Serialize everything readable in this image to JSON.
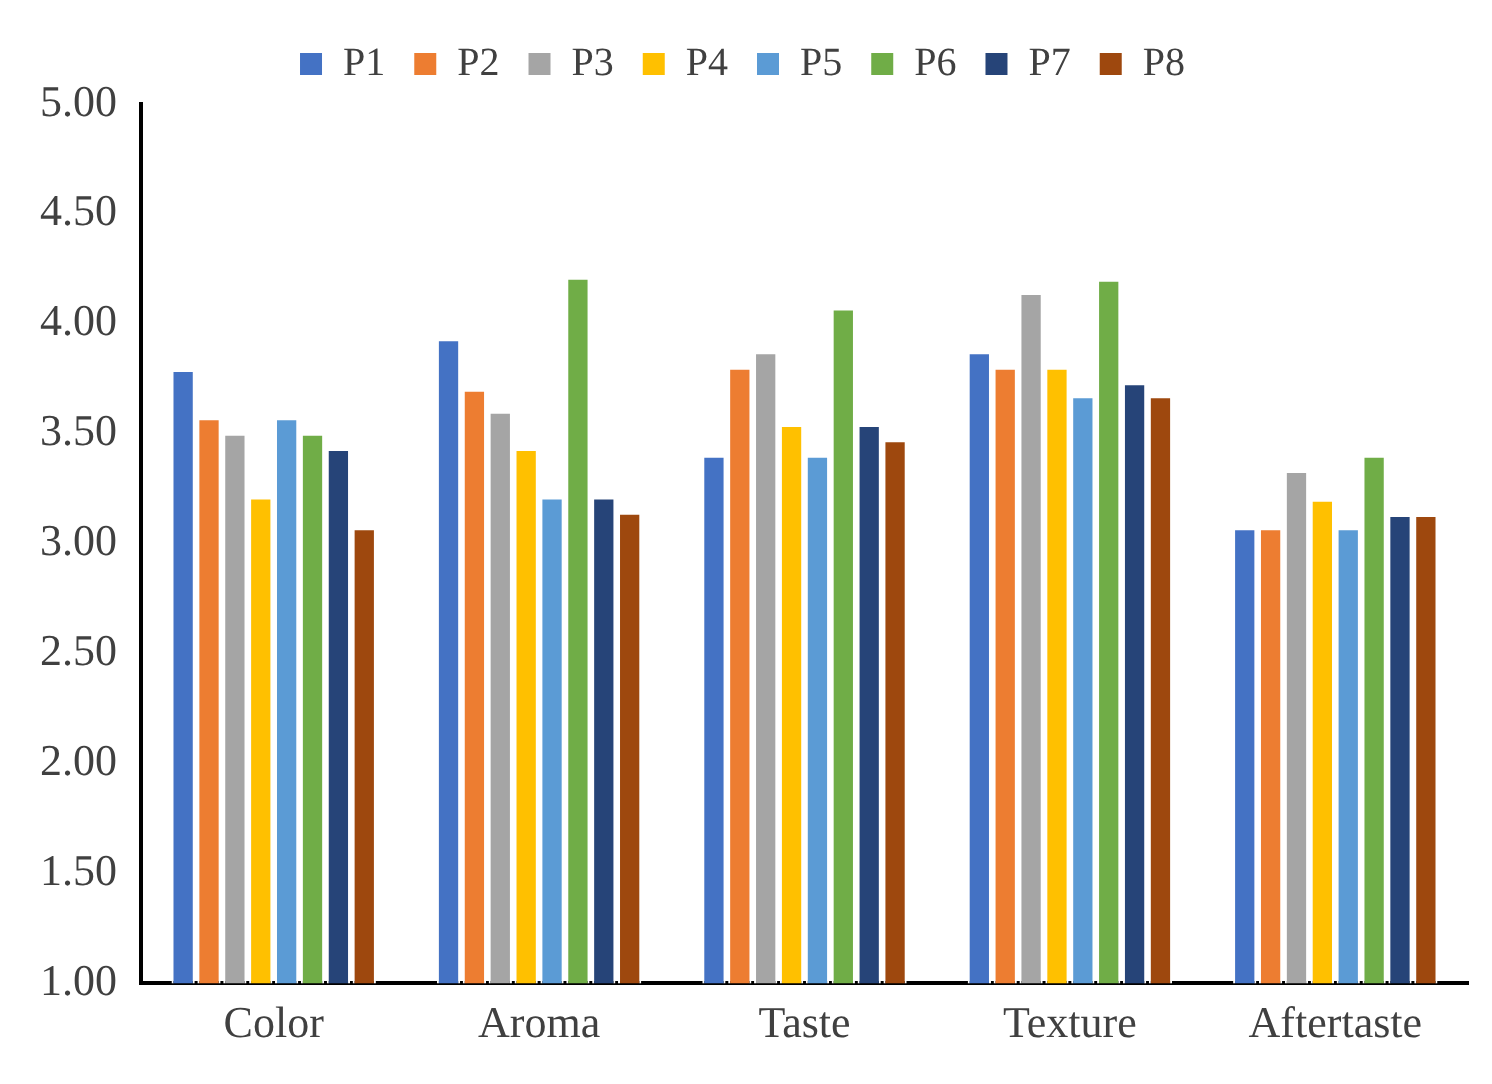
{
  "chart_data": {
    "type": "bar",
    "categories": [
      "Color",
      "Aroma",
      "Taste",
      "Texture",
      "Aftertaste"
    ],
    "series": [
      {
        "name": "P1",
        "color": "#4472c4",
        "values": [
          3.79,
          3.93,
          3.4,
          3.87,
          3.07
        ]
      },
      {
        "name": "P2",
        "color": "#ed7d31",
        "values": [
          3.57,
          3.7,
          3.8,
          3.8,
          3.07
        ]
      },
      {
        "name": "P3",
        "color": "#a5a5a5",
        "values": [
          3.5,
          3.6,
          3.87,
          4.14,
          3.33
        ]
      },
      {
        "name": "P4",
        "color": "#ffc000",
        "values": [
          3.21,
          3.43,
          3.54,
          3.8,
          3.2
        ]
      },
      {
        "name": "P5",
        "color": "#5b9bd5",
        "values": [
          3.57,
          3.21,
          3.4,
          3.67,
          3.07
        ]
      },
      {
        "name": "P6",
        "color": "#70ad47",
        "values": [
          3.5,
          4.21,
          4.07,
          4.2,
          3.4
        ]
      },
      {
        "name": "P7",
        "color": "#264478",
        "values": [
          3.43,
          3.21,
          3.54,
          3.73,
          3.13
        ]
      },
      {
        "name": "P8",
        "color": "#9e480e",
        "values": [
          3.07,
          3.14,
          3.47,
          3.67,
          3.13
        ]
      }
    ],
    "ylim": [
      1,
      5
    ],
    "yticks": [
      {
        "value": 1,
        "label": "1.00"
      },
      {
        "value": 1.5,
        "label": "1.50"
      },
      {
        "value": 2,
        "label": "2.00"
      },
      {
        "value": 2.5,
        "label": "2.50"
      },
      {
        "value": 3,
        "label": "3.00"
      },
      {
        "value": 3.5,
        "label": "3.50"
      },
      {
        "value": 4,
        "label": "4.00"
      },
      {
        "value": 4.5,
        "label": "4.50"
      },
      {
        "value": 5,
        "label": "5.00"
      }
    ],
    "grid": false,
    "legend": "top"
  }
}
